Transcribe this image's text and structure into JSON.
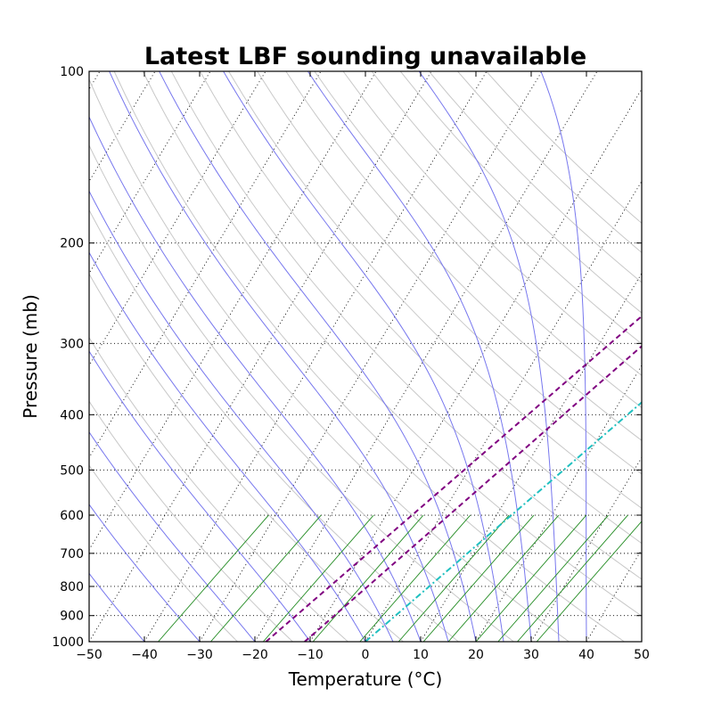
{
  "chart_data": {
    "type": "skew-t",
    "title": "Latest LBF sounding unavailable",
    "xlabel": "Temperature (°C)",
    "ylabel": "Pressure (mb)",
    "xlim": [
      -50,
      50
    ],
    "ylim": [
      1000,
      100
    ],
    "y_scale": "log",
    "x_ticks": [
      -50,
      -40,
      -30,
      -20,
      -10,
      0,
      10,
      20,
      30,
      40,
      50
    ],
    "x_tick_labels": [
      "−50",
      "−40",
      "−30",
      "−20",
      "−10",
      "0",
      "10",
      "20",
      "30",
      "40",
      "50"
    ],
    "y_ticks": [
      1000,
      900,
      800,
      700,
      600,
      500,
      400,
      300,
      200,
      100
    ],
    "y_tick_labels": [
      "1000",
      "900",
      "800",
      "700",
      "600",
      "500",
      "400",
      "300",
      "200",
      "100"
    ],
    "grid": true,
    "background_lines": {
      "isotherms": {
        "color": "#000000",
        "style": "dotted",
        "start_temps": [
          -120,
          -110,
          -100,
          -90,
          -80,
          -70,
          -60,
          -50,
          -40,
          -30,
          -20,
          -10,
          0,
          10,
          20,
          30,
          40,
          50
        ]
      },
      "dry_adiabats": {
        "color": "#c8c8c8",
        "theta_k": [
          250,
          260,
          270,
          280,
          290,
          300,
          310,
          320,
          330,
          340,
          350,
          360,
          370,
          380,
          390,
          400,
          410,
          420,
          430,
          440,
          450
        ]
      },
      "moist_adiabats": {
        "color": "#7777ee",
        "temp_at_1000mb": [
          -50,
          -40,
          -30,
          -20,
          -10,
          0,
          5,
          10,
          15,
          20,
          25,
          30,
          35,
          40
        ]
      },
      "mixing_ratio_lines": {
        "color": "#228b22",
        "p_top_mb": 600,
        "temp_at_1000mb": [
          -37.5,
          -28,
          -18.5,
          -9.5,
          -1,
          6,
          10.5,
          15,
          20,
          24,
          27.5,
          31
        ]
      }
    },
    "series": [
      {
        "style": "dashed",
        "color": "#800080",
        "points": [
          {
            "t": -18,
            "p": 1000
          },
          {
            "t": 22,
            "p": 200
          }
        ]
      },
      {
        "style": "dashed",
        "color": "#800080",
        "points": [
          {
            "t": -11,
            "p": 1000
          },
          {
            "t": 28,
            "p": 200
          }
        ]
      },
      {
        "style": "dash-dot",
        "color": "#20c0c0",
        "points": [
          {
            "t": 0,
            "p": 1000
          },
          {
            "t": 40,
            "p": 200
          }
        ]
      }
    ]
  }
}
